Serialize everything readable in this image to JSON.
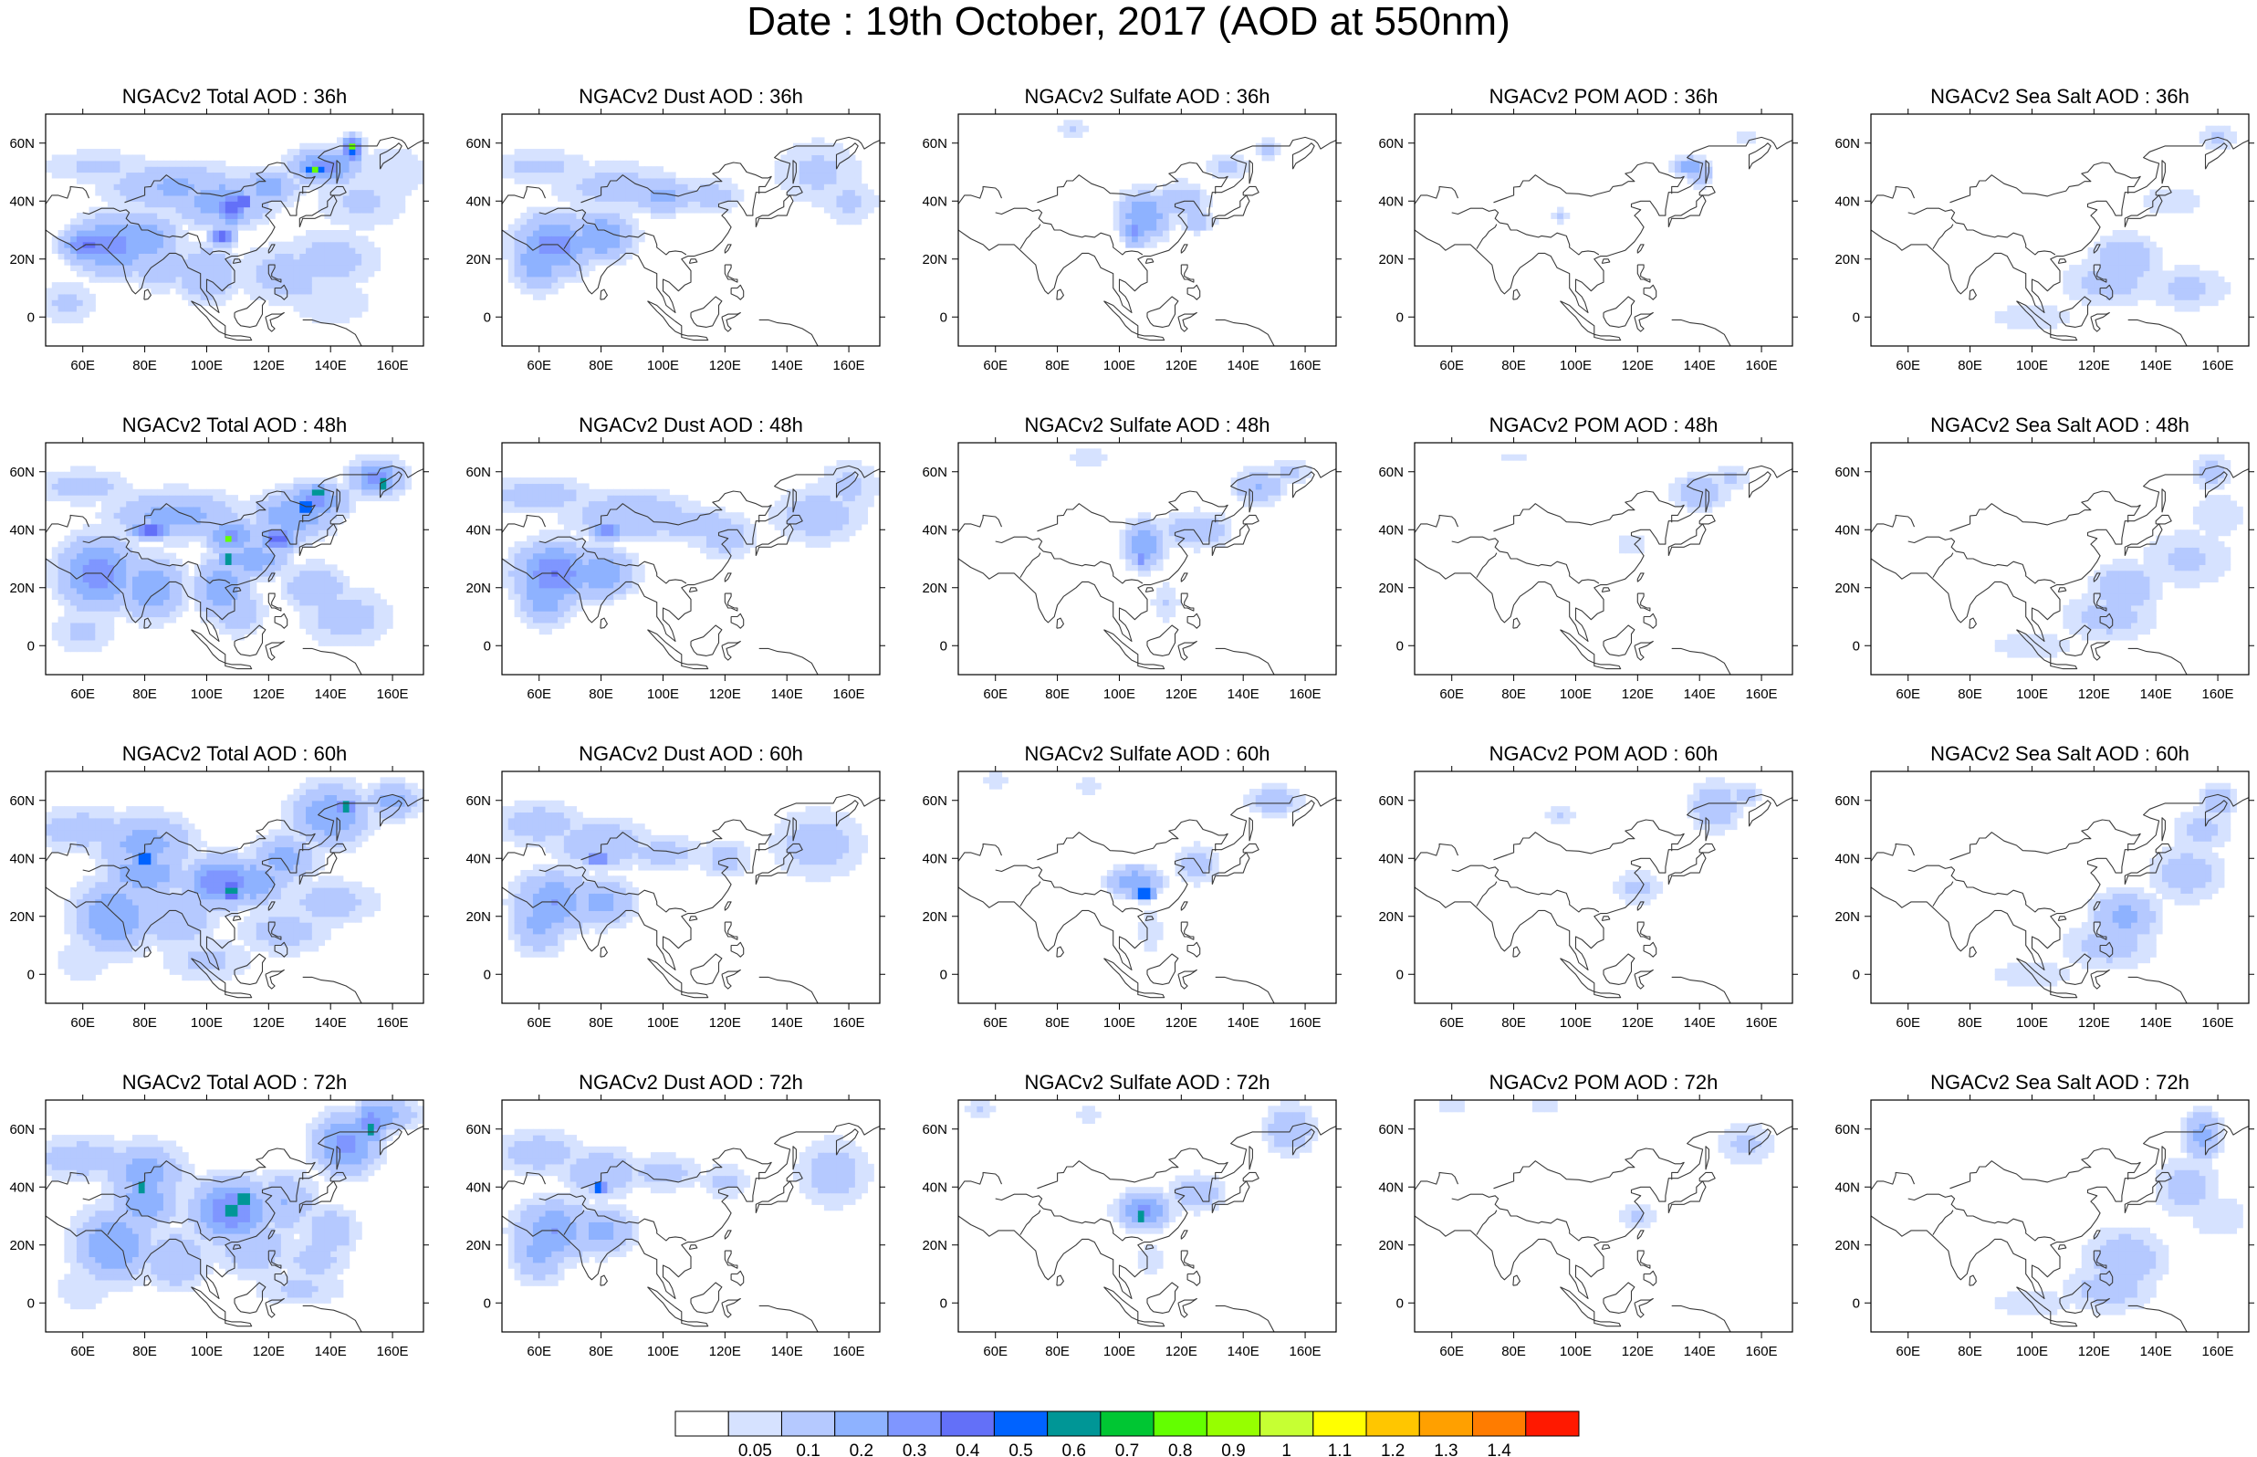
{
  "title": "Date : 19th October, 2017 (AOD at 550nm)",
  "row_labels": [
    "36h",
    "48h",
    "60h",
    "72h"
  ],
  "columns": [
    {
      "species": "total",
      "panel_titles": [
        "NGACv2 Total AOD : 36h",
        "NGACv2 Total AOD : 48h",
        "NGACv2 Total AOD : 60h",
        "NGACv2 Total AOD : 72h"
      ]
    },
    {
      "species": "dust",
      "panel_titles": [
        "NGACv2 Dust AOD : 36h",
        "NGACv2 Dust AOD : 48h",
        "NGACv2 Dust AOD : 60h",
        "NGACv2 Dust AOD : 72h"
      ]
    },
    {
      "species": "sulfate",
      "panel_titles": [
        "NGACv2 Sulfate AOD : 36h",
        "NGACv2 Sulfate AOD : 48h",
        "NGACv2 Sulfate AOD : 60h",
        "NGACv2 Sulfate AOD : 72h"
      ]
    },
    {
      "species": "pom",
      "panel_titles": [
        "NGACv2 POM AOD : 36h",
        "NGACv2 POM AOD : 48h",
        "NGACv2 POM AOD : 60h",
        "NGACv2 POM AOD : 72h"
      ]
    },
    {
      "species": "seasalt",
      "panel_titles": [
        "NGACv2 Sea Salt AOD : 36h",
        "NGACv2 Sea Salt AOD : 48h",
        "NGACv2 Sea Salt AOD : 60h",
        "NGACv2 Sea Salt  AOD : 72h"
      ]
    }
  ],
  "map_extent": {
    "lon": [
      48,
      170
    ],
    "lat": [
      -10,
      70
    ]
  },
  "lon_ticks": [
    "60E",
    "80E",
    "100E",
    "120E",
    "140E",
    "160E"
  ],
  "lon_tick_values": [
    60,
    80,
    100,
    120,
    140,
    160
  ],
  "lat_ticks": [
    "60N",
    "40N",
    "20N",
    "0"
  ],
  "lat_tick_values": [
    60,
    40,
    20,
    0
  ],
  "colorbar": {
    "labels": [
      "0.05",
      "0.1",
      "0.2",
      "0.3",
      "0.4",
      "0.5",
      "0.6",
      "0.7",
      "0.8",
      "0.9",
      "1",
      "1.1",
      "1.2",
      "1.3",
      "1.4"
    ],
    "colors": [
      "#ffffff",
      "#d6e2ff",
      "#b5c9ff",
      "#8eb2ff",
      "#7f96ff",
      "#6370f8",
      "#0063ff",
      "#009696",
      "#00c633",
      "#63ff00",
      "#96ff00",
      "#c6ff33",
      "#ffff00",
      "#ffc600",
      "#ffa000",
      "#ff7c00",
      "#ff1900"
    ]
  }
}
